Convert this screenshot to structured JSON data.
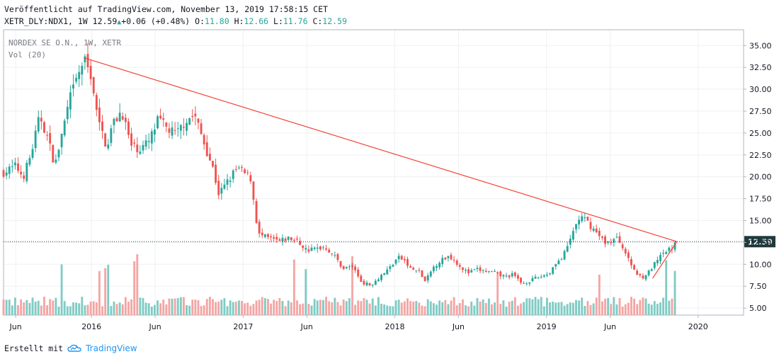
{
  "header": {
    "published": "Veröffentlicht auf TradingView.com, November 13, 2019 17:58:15 CET",
    "symbol": "XETR_DLY:NDX1, 1W",
    "last": "12.59",
    "change": "+0.06 (+0.48%)",
    "o_label": "O:",
    "o_value": "11.80",
    "h_label": "H:",
    "h_value": "12.66",
    "l_label": "L:",
    "l_value": "11.76",
    "c_label": "C:",
    "c_value": "12.59"
  },
  "legend": {
    "instrument": "NORDEX SE O.N., 1W, XETR",
    "volume": "Vol (20)"
  },
  "footer": {
    "created_with": "Erstellt mit",
    "brand": "TradingView"
  },
  "colors": {
    "up": "#26a69a",
    "down": "#ef5350",
    "up_volume": "#80cbc4",
    "down_volume": "#f3a6a4",
    "trendline": "#f44336",
    "price_label": "#1f3a3d",
    "grid": "#eef0f3"
  },
  "chart_data": {
    "type": "candlestick",
    "title": "NORDEX SE O.N., 1W, XETR",
    "y_axis": {
      "range": [
        4.2,
        36.8
      ],
      "ticks": [
        "35.00",
        "32.50",
        "30.00",
        "27.50",
        "25.00",
        "22.50",
        "20.00",
        "17.50",
        "15.00",
        "12.50",
        "10.00",
        "7.50",
        "5.00"
      ]
    },
    "x_axis": {
      "range": [
        2015.42,
        2020.3
      ],
      "ticks": [
        {
          "t": 2015.5,
          "label": "Jun"
        },
        {
          "t": 2016.0,
          "label": "2016"
        },
        {
          "t": 2016.42,
          "label": "Jun"
        },
        {
          "t": 2017.0,
          "label": "2017"
        },
        {
          "t": 2017.42,
          "label": "Jun"
        },
        {
          "t": 2018.0,
          "label": "2018"
        },
        {
          "t": 2018.42,
          "label": "Jun"
        },
        {
          "t": 2019.0,
          "label": "2019"
        },
        {
          "t": 2019.42,
          "label": "Jun"
        },
        {
          "t": 2020.0,
          "label": "2020"
        }
      ]
    },
    "last_price": 12.59,
    "last_price_label": "12.59",
    "trendlines": [
      {
        "name": "downtrend-resistance",
        "from": [
          2015.95,
          33.6
        ],
        "to": [
          2019.86,
          12.6
        ]
      },
      {
        "name": "uptrend-support",
        "from": [
          2019.7,
          8.4
        ],
        "to": [
          2019.86,
          12.6
        ]
      }
    ],
    "close_path": [
      [
        2015.42,
        20.5
      ],
      [
        2015.5,
        21.2
      ],
      [
        2015.55,
        20.0
      ],
      [
        2015.6,
        22.5
      ],
      [
        2015.66,
        27.0
      ],
      [
        2015.7,
        25.0
      ],
      [
        2015.76,
        21.3
      ],
      [
        2015.8,
        24.5
      ],
      [
        2015.86,
        29.0
      ],
      [
        2015.9,
        31.0
      ],
      [
        2015.95,
        33.4
      ],
      [
        2016.0,
        31.5
      ],
      [
        2016.04,
        26.5
      ],
      [
        2016.1,
        23.5
      ],
      [
        2016.14,
        26.0
      ],
      [
        2016.2,
        27.6
      ],
      [
        2016.26,
        23.5
      ],
      [
        2016.32,
        23.2
      ],
      [
        2016.38,
        24.0
      ],
      [
        2016.44,
        26.5
      ],
      [
        2016.5,
        25.5
      ],
      [
        2016.56,
        24.8
      ],
      [
        2016.62,
        26.5
      ],
      [
        2016.68,
        27.0
      ],
      [
        2016.74,
        24.0
      ],
      [
        2016.8,
        21.0
      ],
      [
        2016.84,
        18.0
      ],
      [
        2016.9,
        19.5
      ],
      [
        2016.96,
        21.0
      ],
      [
        2017.0,
        20.5
      ],
      [
        2017.05,
        19.8
      ],
      [
        2017.1,
        13.4
      ],
      [
        2017.16,
        13.0
      ],
      [
        2017.24,
        12.6
      ],
      [
        2017.3,
        13.0
      ],
      [
        2017.36,
        12.6
      ],
      [
        2017.42,
        11.6
      ],
      [
        2017.48,
        11.8
      ],
      [
        2017.54,
        12.0
      ],
      [
        2017.6,
        11.0
      ],
      [
        2017.66,
        9.5
      ],
      [
        2017.72,
        9.8
      ],
      [
        2017.78,
        8.0
      ],
      [
        2017.84,
        7.6
      ],
      [
        2017.9,
        8.6
      ],
      [
        2017.96,
        9.5
      ],
      [
        2018.02,
        10.8
      ],
      [
        2018.06,
        10.5
      ],
      [
        2018.1,
        9.5
      ],
      [
        2018.16,
        9.2
      ],
      [
        2018.2,
        8.0
      ],
      [
        2018.26,
        9.8
      ],
      [
        2018.3,
        10.4
      ],
      [
        2018.36,
        11.0
      ],
      [
        2018.42,
        10.0
      ],
      [
        2018.48,
        9.0
      ],
      [
        2018.54,
        9.4
      ],
      [
        2018.6,
        9.2
      ],
      [
        2018.66,
        9.0
      ],
      [
        2018.72,
        8.6
      ],
      [
        2018.78,
        8.8
      ],
      [
        2018.84,
        7.8
      ],
      [
        2018.9,
        8.2
      ],
      [
        2018.96,
        8.6
      ],
      [
        2019.02,
        9.0
      ],
      [
        2019.06,
        10.2
      ],
      [
        2019.1,
        10.6
      ],
      [
        2019.14,
        12.0
      ],
      [
        2019.18,
        14.0
      ],
      [
        2019.22,
        15.4
      ],
      [
        2019.26,
        15.0
      ],
      [
        2019.3,
        14.2
      ],
      [
        2019.34,
        13.4
      ],
      [
        2019.38,
        12.6
      ],
      [
        2019.42,
        12.5
      ],
      [
        2019.46,
        13.0
      ],
      [
        2019.5,
        12.2
      ],
      [
        2019.54,
        10.5
      ],
      [
        2019.58,
        9.4
      ],
      [
        2019.6,
        8.8
      ],
      [
        2019.64,
        8.6
      ],
      [
        2019.68,
        9.2
      ],
      [
        2019.72,
        10.2
      ],
      [
        2019.76,
        11.0
      ],
      [
        2019.8,
        11.6
      ],
      [
        2019.84,
        12.0
      ],
      [
        2019.86,
        12.59
      ]
    ],
    "volume": {
      "label": "Vol (20)",
      "band": "lower-overlay",
      "relative_max": 1.0
    }
  }
}
